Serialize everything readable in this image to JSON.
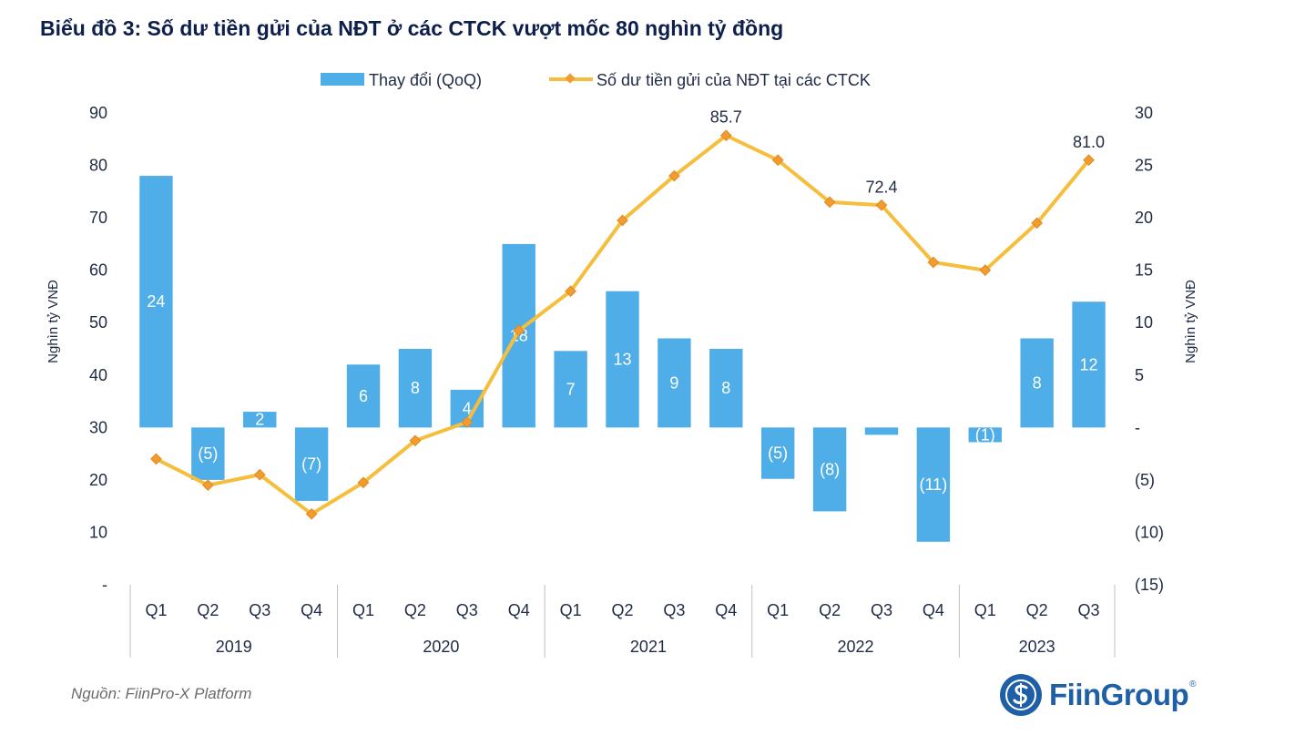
{
  "title": "Biểu đồ 3: Số dư tiền gửi của NĐT ở các CTCK vượt mốc 80 nghìn tỷ đồng",
  "source": "Nguồn: FiinPro-X Platform",
  "brand": {
    "name": "FiinGroup",
    "reg": "®"
  },
  "chart_data": {
    "type": "bar+line",
    "categories": [
      "Q1",
      "Q2",
      "Q3",
      "Q4",
      "Q1",
      "Q2",
      "Q3",
      "Q4",
      "Q1",
      "Q2",
      "Q3",
      "Q4",
      "Q1",
      "Q2",
      "Q3",
      "Q4",
      "Q1",
      "Q2",
      "Q3"
    ],
    "years": [
      {
        "label": "2019",
        "count": 4
      },
      {
        "label": "2020",
        "count": 4
      },
      {
        "label": "2021",
        "count": 4
      },
      {
        "label": "2022",
        "count": 4
      },
      {
        "label": "2023",
        "count": 3
      }
    ],
    "series": [
      {
        "name": "Thay đổi (QoQ)",
        "type": "bar",
        "axis": "right",
        "color": "#4faee8",
        "values": [
          24,
          -5,
          1.5,
          -7,
          6,
          7.5,
          3.6,
          17.5,
          7.3,
          13,
          8.5,
          7.5,
          -4.9,
          -8,
          -0.7,
          -10.9,
          -1.4,
          8.5,
          12
        ],
        "labels": [
          "24",
          "(5)",
          "2",
          "(7)",
          "6",
          "8",
          "4",
          "18",
          "7",
          "13",
          "9",
          "8",
          "(5)",
          "(8)",
          "",
          "(11)",
          "(1)",
          "8",
          "12"
        ]
      },
      {
        "name": "Số dư tiền gửi của NĐT tại các CTCK",
        "type": "line",
        "axis": "left",
        "color": "#f5be3c",
        "marker_color": "#f29b30",
        "values": [
          24,
          19,
          21,
          13.5,
          19.5,
          27.5,
          31,
          48.5,
          56,
          69.5,
          78,
          85.7,
          81,
          73,
          72.4,
          61.5,
          60,
          69,
          81
        ],
        "labels": [
          "",
          "",
          "",
          "",
          "",
          "",
          "",
          "",
          "",
          "",
          "",
          "85.7",
          "",
          "",
          "72.4",
          "",
          "",
          "",
          "81.0"
        ]
      }
    ],
    "left_axis": {
      "title": "Nghìn tỷ VNĐ",
      "min": 0,
      "max": 90,
      "ticks": [
        0,
        10,
        20,
        30,
        40,
        50,
        60,
        70,
        80,
        90
      ],
      "tick_labels": [
        "-",
        "10",
        "20",
        "30",
        "40",
        "50",
        "60",
        "70",
        "80",
        "90"
      ]
    },
    "right_axis": {
      "title": "Nghìn tỷ VNĐ",
      "min": -15,
      "max": 30,
      "ticks": [
        -15,
        -10,
        -5,
        0,
        5,
        10,
        15,
        20,
        25,
        30
      ],
      "tick_labels": [
        "(15)",
        "(10)",
        "(5)",
        "-",
        "5",
        "10",
        "15",
        "20",
        "25",
        "30"
      ]
    },
    "legend": {
      "position": "top",
      "items": [
        {
          "label": "Thay đổi (QoQ)",
          "kind": "bar"
        },
        {
          "label": "Số dư tiền gửi của NĐT tại các CTCK",
          "kind": "line"
        }
      ]
    }
  }
}
